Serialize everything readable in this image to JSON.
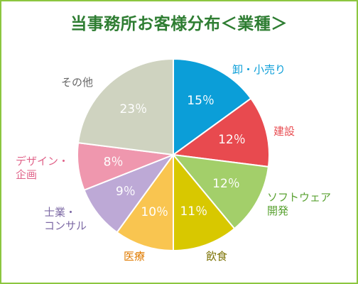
{
  "chart_data": {
    "type": "pie",
    "title": "当事務所お客様分布＜業種＞",
    "start_angle_deg": 0,
    "direction": "clockwise",
    "slices": [
      {
        "name": "卸・小売り",
        "value": 15,
        "label": "15％",
        "color": "#0b9ed8",
        "label_color": "#0b9ed8"
      },
      {
        "name": "建設",
        "value": 12,
        "label": "12％",
        "color": "#e84a4f",
        "label_color": "#e84a4f"
      },
      {
        "name": "ソフトウェア開発",
        "value": 12,
        "label": "12％",
        "color": "#a3cf6a",
        "label_color": "#5aa232"
      },
      {
        "name": "飲食",
        "value": 11,
        "label": "11％",
        "color": "#d8c800",
        "label_color": "#7a7000"
      },
      {
        "name": "医療",
        "value": 10,
        "label": "10％",
        "color": "#f9c550",
        "label_color": "#e07b00"
      },
      {
        "name": "士業・コンサル",
        "value": 9,
        "label": "9％",
        "color": "#bda9d6",
        "label_color": "#7d6aa5"
      },
      {
        "name": "デザイン・企画",
        "value": 8,
        "label": "8％",
        "color": "#ef97ae",
        "label_color": "#e0648a"
      },
      {
        "name": "その他",
        "value": 23,
        "label": "23％",
        "color": "#cfd3c0",
        "label_color": "#666666"
      }
    ]
  }
}
